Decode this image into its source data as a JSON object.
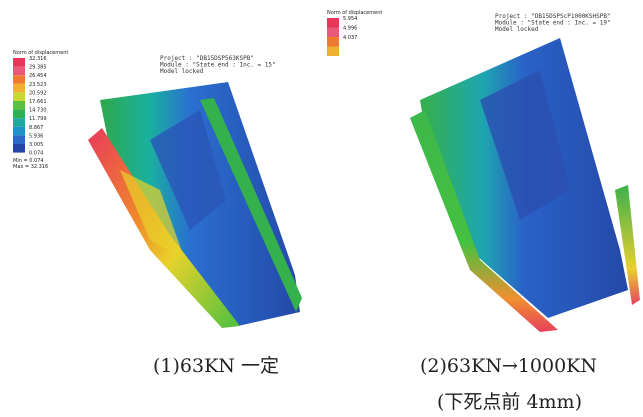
{
  "left_panel": {
    "legend": {
      "title": "Norm of displacement",
      "values": [
        "32.316",
        "29.385",
        "26.454",
        "23.523",
        "20.592",
        "17.661",
        "14.730",
        "11.799",
        "8.867",
        "5.936",
        "3.005",
        "0.074"
      ],
      "min": "Min = 0.074",
      "max": "Max = 32.316"
    },
    "info": [
      "Project : \"DB15DSP563KSPB\"",
      "Module : \"State end : Inc. = 15\"",
      "Model locked"
    ]
  },
  "right_panel": {
    "legend": {
      "title": "Norm of displacement",
      "values": [
        "5.954",
        "4.996",
        "4.037"
      ]
    },
    "info": [
      "Project : \"DB15DSPScP1000KSHSPB\"",
      "Module : \"State end : Inc. = 19\"",
      "Model locked"
    ]
  },
  "captions": [
    "(1)63KN 一定",
    "(2)63KN→1000KN",
    "(下死点前 4mm)"
  ]
}
